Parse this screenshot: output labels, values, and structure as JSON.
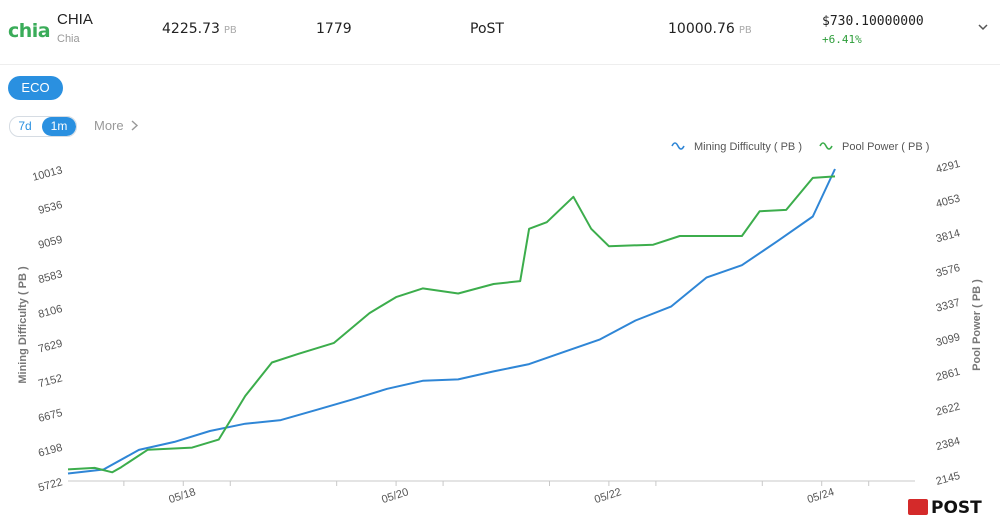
{
  "header": {
    "logo_text": "chia",
    "coin_name": "CHIA",
    "coin_sub": "Chia",
    "difficulty": "4225.73",
    "difficulty_unit": "PB",
    "height": "1779",
    "consensus": "PoST",
    "netspace": "10000.76",
    "netspace_unit": "PB",
    "price": "$730.10000000",
    "change": "+6.41%"
  },
  "tabs": {
    "eco_label": "ECO"
  },
  "range": {
    "opt_7d": "7d",
    "opt_1m": "1m",
    "more_label": "More"
  },
  "watermark": "POST",
  "colors": {
    "difficulty": "#2f86d6",
    "pool": "#3cad4c",
    "accent": "#2a90e0",
    "change": "#2d9d3a"
  },
  "chart_data": {
    "type": "line",
    "legend_position": "top-right",
    "grid": false,
    "x_ticks": [
      "05/18",
      "05/20",
      "05/22",
      "05/24"
    ],
    "ylabel_left": "Mining Difficulty ( PB )",
    "ylabel_right": "Pool Power ( PB )",
    "yticks_left": [
      "5722",
      "6198",
      "6675",
      "7152",
      "7629",
      "8106",
      "8583",
      "9059",
      "9536",
      "10013"
    ],
    "yticks_right": [
      "2145",
      "2384",
      "2622",
      "2861",
      "3099",
      "3337",
      "3576",
      "3814",
      "4053",
      "4291"
    ],
    "ylim_left": [
      5722,
      10013
    ],
    "ylim_right": [
      2145,
      4291
    ],
    "xlim": [
      "05/16 22:00",
      "05/24 03:00"
    ],
    "series": [
      {
        "name": "Mining Difficulty ( PB )",
        "axis": "left",
        "x": [
          "05/16 22:00",
          "05/17 06:00",
          "05/17 14:00",
          "05/17 22:00",
          "05/18 06:00",
          "05/18 14:00",
          "05/18 22:00",
          "05/19 06:00",
          "05/19 14:00",
          "05/19 22:00",
          "05/20 06:00",
          "05/20 14:00",
          "05/20 22:00",
          "05/21 06:00",
          "05/21 14:00",
          "05/21 22:00",
          "05/22 06:00",
          "05/22 14:00",
          "05/22 22:00",
          "05/23 06:00",
          "05/23 14:00",
          "05/23 22:00",
          "05/24 03:00"
        ],
        "values": [
          5825,
          5880,
          6150,
          6260,
          6410,
          6510,
          6560,
          6700,
          6840,
          6990,
          7100,
          7120,
          7230,
          7330,
          7500,
          7670,
          7930,
          8120,
          8520,
          8690,
          9020,
          9360,
          10013
        ]
      },
      {
        "name": "Pool Power ( PB )",
        "axis": "right",
        "x": [
          "05/16 22:00",
          "05/17 04:00",
          "05/17 08:00",
          "05/17 10:00",
          "05/17 16:00",
          "05/18 02:00",
          "05/18 08:00",
          "05/18 14:00",
          "05/18 20:00",
          "05/19 02:00",
          "05/19 10:00",
          "05/19 18:00",
          "05/20 00:00",
          "05/20 06:00",
          "05/20 14:00",
          "05/20 22:00",
          "05/21 04:00",
          "05/21 06:00",
          "05/21 10:00",
          "05/21 16:00",
          "05/21 20:00",
          "05/22 00:00",
          "05/22 10:00",
          "05/22 16:00",
          "05/22 22:00",
          "05/23 06:00",
          "05/23 10:00",
          "05/23 16:00",
          "05/23 22:00",
          "05/24 03:00"
        ],
        "values": [
          2225,
          2235,
          2205,
          2240,
          2360,
          2375,
          2430,
          2730,
          2960,
          3020,
          3095,
          3300,
          3410,
          3470,
          3435,
          3500,
          3520,
          3880,
          3925,
          4100,
          3880,
          3760,
          3770,
          3830,
          3830,
          3830,
          4000,
          4010,
          4230,
          4240
        ]
      }
    ]
  }
}
